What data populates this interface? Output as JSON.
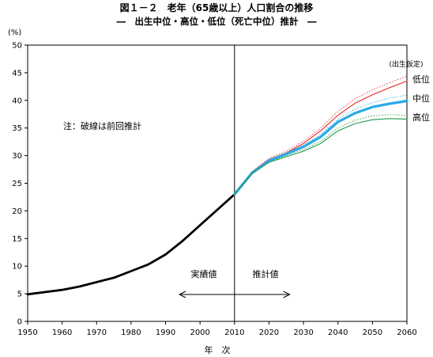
{
  "chart_data": {
    "type": "line",
    "title": "図１－２　老年（65歳以上）人口割合の推移",
    "subtitle": "―　出生中位・高位・低位（死亡中位）推計　―",
    "ylabel": "(%)",
    "xlabel": "年　次",
    "xlim": [
      1950,
      2060
    ],
    "ylim": [
      0,
      50
    ],
    "xticks": [
      1950,
      1960,
      1970,
      1980,
      1990,
      2000,
      2010,
      2020,
      2030,
      2040,
      2050,
      2060
    ],
    "yticks": [
      0,
      5,
      10,
      15,
      20,
      25,
      30,
      35,
      40,
      45,
      50
    ],
    "grid": false,
    "divider_year": 2010,
    "annotations": {
      "note": "注：破線は前回推計",
      "actual": "実績値",
      "projection": "推計値",
      "assumption": "(出生仮定)"
    },
    "series": [
      {
        "name": "実績値",
        "role": "actual",
        "color": "#000000",
        "x": [
          1950,
          1955,
          1960,
          1965,
          1970,
          1975,
          1980,
          1985,
          1990,
          1995,
          2000,
          2005,
          2010
        ],
        "y": [
          4.9,
          5.3,
          5.7,
          6.3,
          7.1,
          7.9,
          9.1,
          10.3,
          12.1,
          14.6,
          17.4,
          20.2,
          23.0
        ]
      },
      {
        "name": "低位",
        "role": "projection",
        "color": "#e8262a",
        "x": [
          2010,
          2015,
          2020,
          2025,
          2030,
          2035,
          2040,
          2045,
          2050,
          2055,
          2060
        ],
        "y": [
          23.0,
          27.0,
          29.3,
          30.5,
          32.2,
          34.5,
          37.3,
          39.5,
          41.0,
          42.3,
          43.5
        ]
      },
      {
        "name": "中位",
        "role": "projection",
        "color": "#2aa9e6",
        "x": [
          2010,
          2015,
          2020,
          2025,
          2030,
          2035,
          2040,
          2045,
          2050,
          2055,
          2060
        ],
        "y": [
          23.0,
          26.8,
          29.1,
          30.3,
          31.6,
          33.4,
          36.1,
          37.7,
          38.8,
          39.4,
          39.9
        ]
      },
      {
        "name": "高位",
        "role": "projection",
        "color": "#1f9a48",
        "x": [
          2010,
          2015,
          2020,
          2025,
          2030,
          2035,
          2040,
          2045,
          2050,
          2055,
          2060
        ],
        "y": [
          23.0,
          26.7,
          28.8,
          29.8,
          30.8,
          32.2,
          34.5,
          35.8,
          36.5,
          36.7,
          36.6
        ]
      },
      {
        "name": "低位",
        "role": "previous",
        "color": "#e8262a",
        "x": [
          2010,
          2015,
          2020,
          2025,
          2030,
          2035,
          2040,
          2045,
          2050,
          2055,
          2060
        ],
        "y": [
          23.0,
          27.1,
          29.5,
          30.8,
          32.6,
          35.0,
          38.0,
          40.3,
          41.9,
          43.2,
          44.4
        ]
      },
      {
        "name": "中位",
        "role": "previous",
        "color": "#2aa9e6",
        "x": [
          2010,
          2015,
          2020,
          2025,
          2030,
          2035,
          2040,
          2045,
          2050,
          2055,
          2060
        ],
        "y": [
          23.0,
          26.9,
          29.2,
          30.5,
          31.9,
          33.8,
          36.6,
          38.4,
          39.6,
          40.4,
          41.0
        ]
      },
      {
        "name": "高位",
        "role": "previous",
        "color": "#1f9a48",
        "x": [
          2010,
          2015,
          2020,
          2025,
          2030,
          2035,
          2040,
          2045,
          2050,
          2055,
          2060
        ],
        "y": [
          23.0,
          26.8,
          28.9,
          30.0,
          31.1,
          32.6,
          35.0,
          36.4,
          37.2,
          37.4,
          37.3
        ]
      }
    ]
  }
}
